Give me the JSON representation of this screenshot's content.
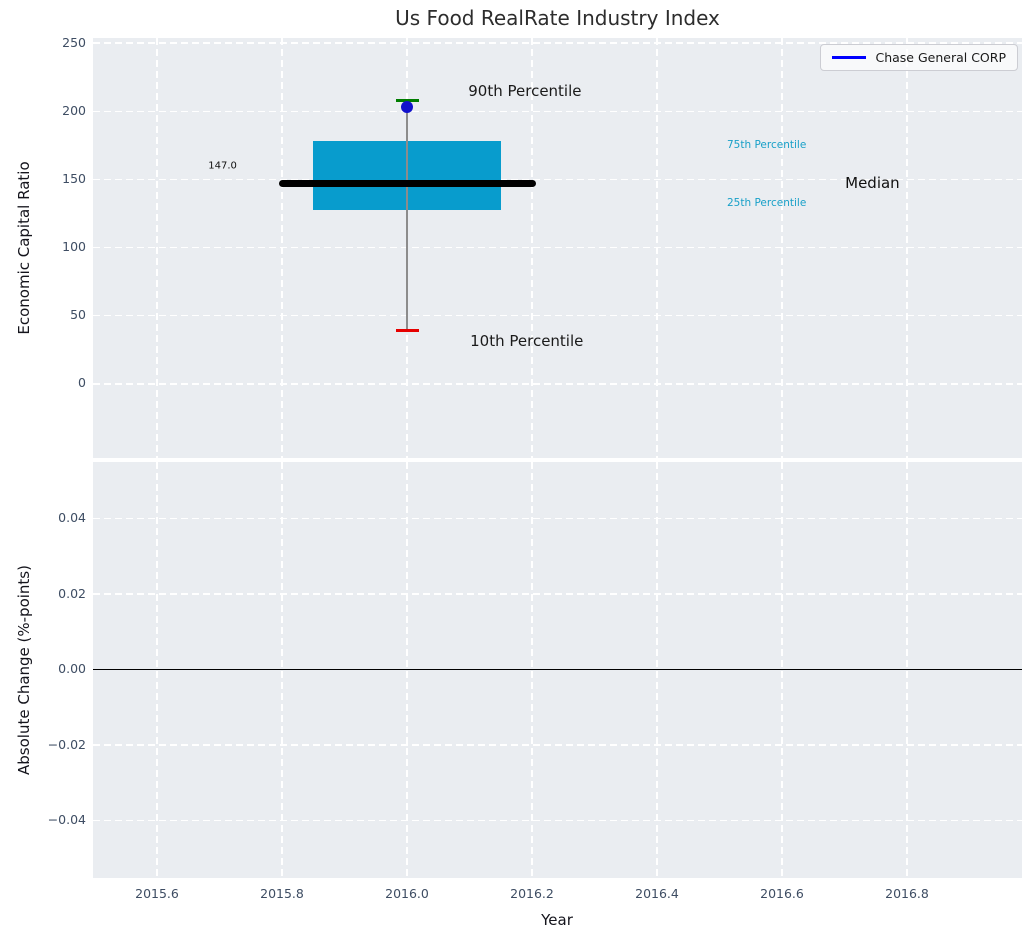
{
  "chart_data": {
    "type": "boxplot",
    "title": "Us Food RealRate Industry Index",
    "xlabel": "Year",
    "grid": "white dashed, on",
    "background_color": "#eaedf1",
    "legend": {
      "label": "Chase General CORP",
      "position": "upper right",
      "line_color": "#0000ff"
    },
    "xlim": [
      2015.4976,
      2016.984
    ],
    "xticks": [
      {
        "v": 2015.6,
        "label": "2015.6"
      },
      {
        "v": 2015.8,
        "label": "2015.8"
      },
      {
        "v": 2016.0,
        "label": "2016.0"
      },
      {
        "v": 2016.2,
        "label": "2016.2"
      },
      {
        "v": 2016.4,
        "label": "2016.4"
      },
      {
        "v": 2016.6,
        "label": "2016.6"
      },
      {
        "v": 2016.8,
        "label": "2016.8"
      }
    ],
    "top_panel": {
      "ylabel": "Economic Capital Ratio",
      "ylim": [
        -54.3,
        253.7
      ],
      "yticks": [
        {
          "v": 0,
          "label": "0"
        },
        {
          "v": 50,
          "label": "50"
        },
        {
          "v": 100,
          "label": "100"
        },
        {
          "v": 150,
          "label": "150"
        },
        {
          "v": 200,
          "label": "200"
        },
        {
          "v": 250,
          "label": "250"
        }
      ],
      "boxplot": {
        "x": 2016.0,
        "p10": 39,
        "p25": 127.5,
        "median": 147.0,
        "p75": 178.5,
        "p90": 208,
        "box_halfwidth": 0.1504,
        "median_halfwidth": 0.2056,
        "cap_halfwidth": 0.0184,
        "colors": {
          "box": "#089ccd",
          "whisker": "#8c8c8c",
          "median": "#000000",
          "cap_upper": "#007d00",
          "cap_lower": "#e60000"
        }
      },
      "company_point": {
        "x": 2016.0,
        "y": 203,
        "color": "#1111cc",
        "diameter": 12
      },
      "annotations": [
        {
          "text": "90th Percentile",
          "x": 2016.098,
          "y": 215.0,
          "color": "#1a1a1a",
          "size": 15,
          "halign": "left"
        },
        {
          "text": "10th Percentile",
          "x": 2016.101,
          "y": 31.5,
          "color": "#1a1a1a",
          "size": 15,
          "halign": "left"
        },
        {
          "text": "Median",
          "x": 2016.701,
          "y": 147.5,
          "color": "#111111",
          "size": 15,
          "halign": "left"
        },
        {
          "text": "75th Percentile",
          "x": 2016.512,
          "y": 175.0,
          "color": "#18a0c8",
          "size": 10.5,
          "halign": "left"
        },
        {
          "text": "25th Percentile",
          "x": 2016.512,
          "y": 132.5,
          "color": "#18a0c8",
          "size": 10.5,
          "halign": "left"
        },
        {
          "text": "147.0",
          "x": 2015.682,
          "y": 160.0,
          "color": "#111111",
          "size": 10,
          "halign": "left"
        }
      ]
    },
    "bottom_panel": {
      "ylabel": "Absolute Change (%-points)",
      "ylim": [
        -0.0552,
        0.055
      ],
      "yticks": [
        {
          "v": 0.04,
          "label": "0.04"
        },
        {
          "v": 0.02,
          "label": "0.02"
        },
        {
          "v": 0.0,
          "label": "0.00"
        },
        {
          "v": -0.02,
          "label": "−0.02"
        },
        {
          "v": -0.04,
          "label": "−0.04"
        }
      ],
      "zero_line": {
        "y": 0.0,
        "color": "#000000"
      }
    }
  }
}
